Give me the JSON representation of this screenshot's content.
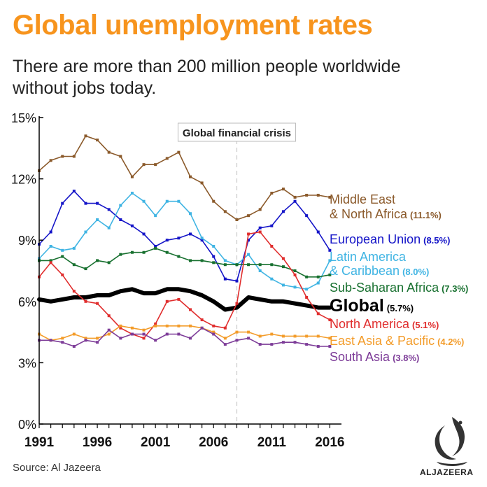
{
  "header": {
    "title": "Global unemployment rates",
    "subtitle": "There are more than 200 million people worldwide without jobs today."
  },
  "footer": {
    "source": "Source: Al Jazeera",
    "brand": "ALJAZEERA"
  },
  "colors": {
    "title": "#f7941d",
    "mena": "#8b5a2b",
    "eu": "#1515c8",
    "latam": "#3fb4e3",
    "ssa": "#17702f",
    "global": "#000000",
    "na": "#e02d2d",
    "eap": "#f39c2a",
    "sa": "#7d3c98"
  },
  "chart_data": {
    "type": "line",
    "title": "Global unemployment rates",
    "x": [
      1991,
      1992,
      1993,
      1994,
      1995,
      1996,
      1997,
      1998,
      1999,
      2000,
      2001,
      2002,
      2003,
      2004,
      2005,
      2006,
      2007,
      2008,
      2009,
      2010,
      2011,
      2012,
      2013,
      2014,
      2015,
      2016
    ],
    "xticks": [
      "1991",
      "1996",
      "2001",
      "2006",
      "2011",
      "2016"
    ],
    "xticks_values": [
      1991,
      1996,
      2001,
      2006,
      2011,
      2016
    ],
    "yticks": [
      "0%",
      "3%",
      "6%",
      "9%",
      "12%",
      "15%"
    ],
    "yticks_values": [
      0,
      3,
      6,
      9,
      12,
      15
    ],
    "xlim": [
      1991,
      2017
    ],
    "ylim": [
      0,
      15
    ],
    "annotation": {
      "label": "Global financial crisis",
      "x": 2008
    },
    "series": [
      {
        "key": "mena",
        "name": "Middle East & North Africa",
        "value_label": "(11.1%)",
        "label_lines": [
          "Middle East",
          "& North Africa"
        ],
        "markers": true,
        "bold": false,
        "values": [
          12.4,
          12.9,
          13.1,
          13.1,
          14.1,
          13.9,
          13.3,
          13.1,
          12.1,
          12.7,
          12.7,
          13.0,
          13.3,
          12.1,
          11.8,
          10.9,
          10.4,
          10.0,
          10.2,
          10.5,
          11.3,
          11.5,
          11.1,
          11.2,
          11.2,
          11.1
        ]
      },
      {
        "key": "eu",
        "name": "European Union",
        "value_label": "(8.5%)",
        "label_lines": [
          "European Union"
        ],
        "markers": true,
        "bold": false,
        "values": [
          8.8,
          9.4,
          10.8,
          11.4,
          10.8,
          10.8,
          10.5,
          10.0,
          9.7,
          9.3,
          8.7,
          9.0,
          9.1,
          9.3,
          9.0,
          8.2,
          7.1,
          7.0,
          9.0,
          9.6,
          9.7,
          10.4,
          10.9,
          10.2,
          9.4,
          8.5
        ]
      },
      {
        "key": "latam",
        "name": "Latin America & Caribbean",
        "value_label": "(8.0%)",
        "label_lines": [
          "Latin America",
          "& Caribbean"
        ],
        "markers": true,
        "bold": false,
        "values": [
          8.1,
          8.7,
          8.5,
          8.6,
          9.4,
          10.0,
          9.6,
          10.7,
          11.3,
          10.9,
          10.2,
          10.9,
          10.9,
          10.3,
          9.1,
          8.7,
          8.0,
          7.8,
          8.3,
          7.5,
          7.1,
          6.8,
          6.7,
          6.6,
          6.9,
          8.0
        ]
      },
      {
        "key": "ssa",
        "name": "Sub-Saharan Africa",
        "value_label": "(7.3%)",
        "label_lines": [
          "Sub-Saharan Africa"
        ],
        "markers": true,
        "bold": false,
        "values": [
          8.0,
          8.0,
          8.2,
          7.8,
          7.6,
          8.0,
          7.9,
          8.3,
          8.4,
          8.4,
          8.6,
          8.4,
          8.2,
          8.0,
          8.0,
          7.9,
          7.8,
          7.8,
          7.8,
          7.8,
          7.8,
          7.7,
          7.5,
          7.2,
          7.2,
          7.3
        ]
      },
      {
        "key": "global",
        "name": "Global",
        "value_label": "(5.7%)",
        "label_lines": [
          "Global"
        ],
        "markers": false,
        "bold": true,
        "values": [
          6.1,
          6.0,
          6.1,
          6.2,
          6.2,
          6.3,
          6.3,
          6.5,
          6.6,
          6.4,
          6.4,
          6.6,
          6.6,
          6.5,
          6.3,
          6.0,
          5.6,
          5.7,
          6.2,
          6.1,
          6.0,
          6.0,
          5.9,
          5.8,
          5.7,
          5.7
        ]
      },
      {
        "key": "na",
        "name": "North America",
        "value_label": "(5.1%)",
        "label_lines": [
          "North America"
        ],
        "markers": true,
        "bold": false,
        "values": [
          7.2,
          7.9,
          7.3,
          6.5,
          6.0,
          5.9,
          5.3,
          4.7,
          4.4,
          4.2,
          4.9,
          6.0,
          6.1,
          5.6,
          5.1,
          4.8,
          4.7,
          5.9,
          9.3,
          9.4,
          8.7,
          8.1,
          7.3,
          6.2,
          5.4,
          5.1
        ]
      },
      {
        "key": "eap",
        "name": "East Asia & Pacific",
        "value_label": "(4.2%)",
        "label_lines": [
          "East Asia & Pacific"
        ],
        "markers": true,
        "bold": false,
        "values": [
          4.4,
          4.1,
          4.2,
          4.4,
          4.2,
          4.2,
          4.4,
          4.8,
          4.7,
          4.6,
          4.8,
          4.8,
          4.8,
          4.8,
          4.7,
          4.5,
          4.2,
          4.5,
          4.5,
          4.3,
          4.4,
          4.3,
          4.3,
          4.3,
          4.3,
          4.2
        ]
      },
      {
        "key": "sa",
        "name": "South Asia",
        "value_label": "(3.8%)",
        "label_lines": [
          "South Asia"
        ],
        "markers": true,
        "bold": false,
        "values": [
          4.1,
          4.1,
          4.0,
          3.8,
          4.1,
          4.0,
          4.6,
          4.2,
          4.4,
          4.4,
          4.1,
          4.4,
          4.4,
          4.2,
          4.7,
          4.4,
          3.9,
          4.1,
          4.2,
          3.9,
          3.9,
          4.0,
          4.0,
          3.9,
          3.8,
          3.8
        ]
      }
    ],
    "legend": "right, inline at line ends"
  }
}
